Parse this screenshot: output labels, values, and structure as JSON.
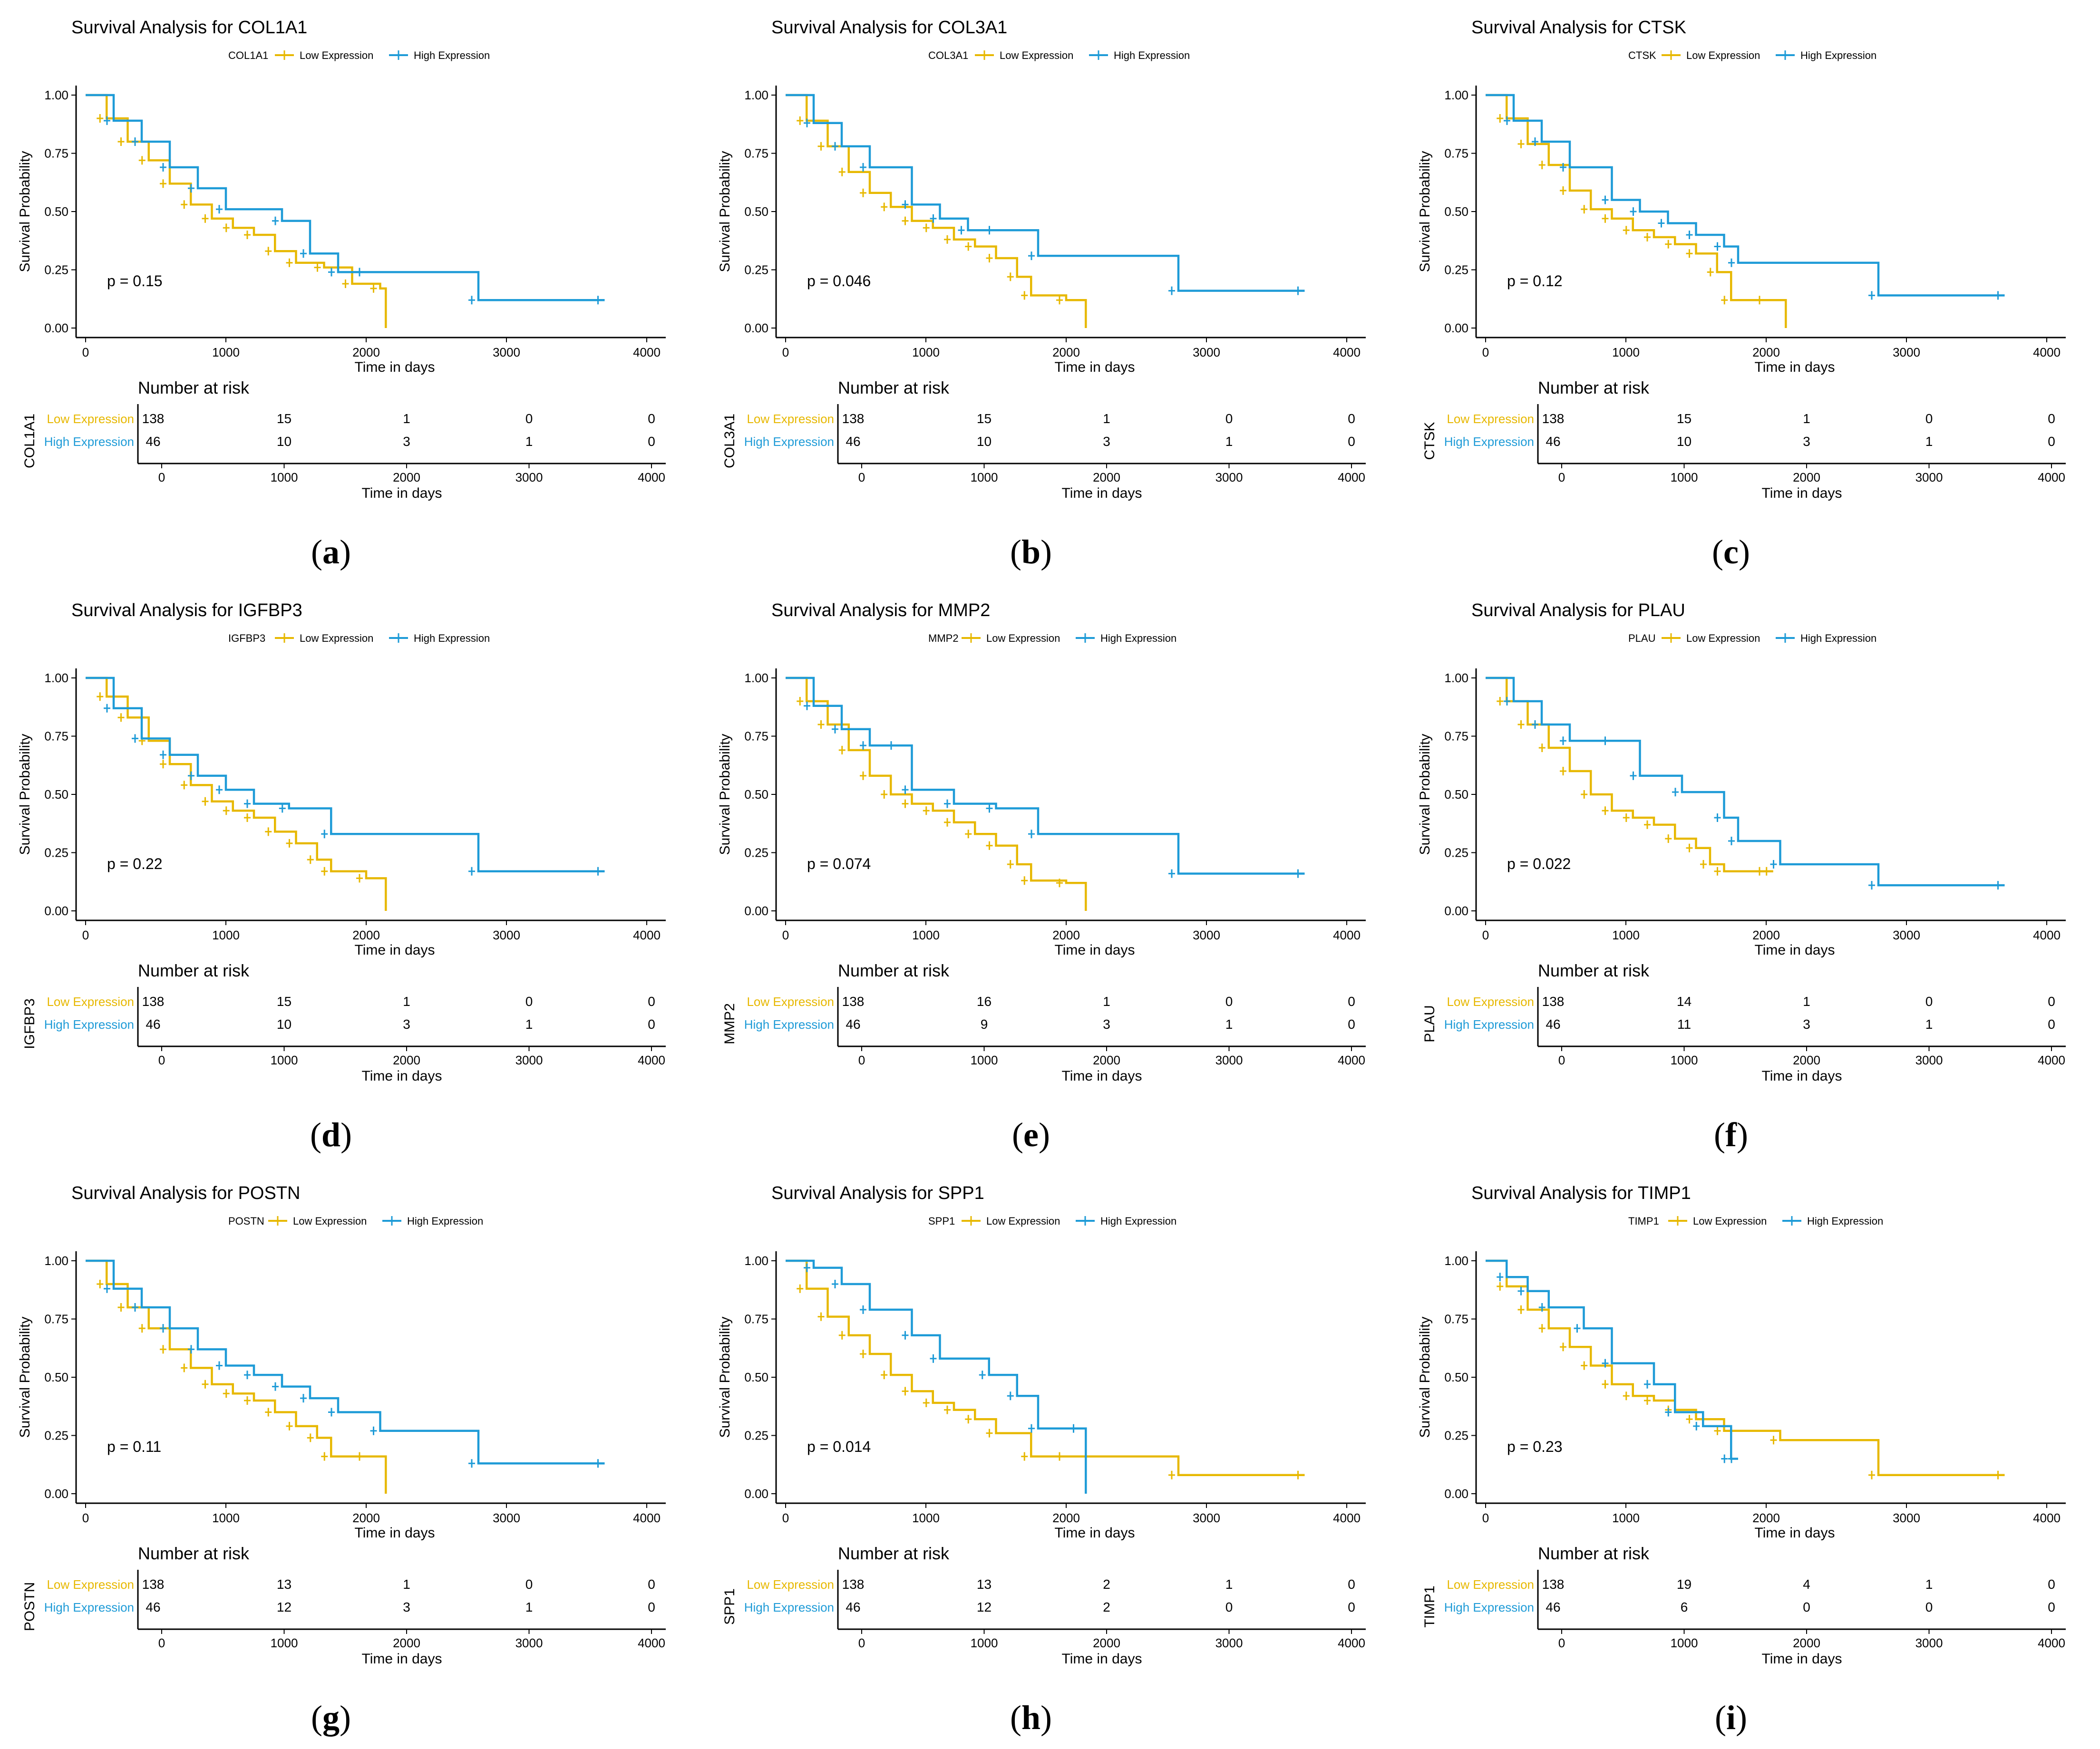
{
  "colors": {
    "low": "#E7B800",
    "high": "#1E9BD7",
    "axis": "#000000",
    "text": "#000000"
  },
  "common": {
    "legend_low": "Low Expression",
    "legend_high": "High Expression",
    "ylabel": "Survival Probability",
    "xlabel": "Time in days",
    "risk_title": "Number at risk",
    "risk_xlabel": "Time in days",
    "ytick_labels": [
      "0.00",
      "0.25",
      "0.50",
      "0.75",
      "1.00"
    ],
    "xtick_labels": [
      "0",
      "1000",
      "2000",
      "3000",
      "4000"
    ],
    "risk_row_low": "Low Expression",
    "risk_row_high": "High Expression"
  },
  "chart_data": [
    {
      "type": "line",
      "panel_label": "(a)",
      "gene": "COL1A1",
      "title": "Survival Analysis for COL1A1",
      "xlabel": "Time in days",
      "ylabel": "Survival Probability",
      "xlim": [
        0,
        4000
      ],
      "ylim": [
        0,
        1
      ],
      "p_value": "p = 0.15",
      "series": [
        {
          "name": "Low Expression",
          "x": [
            0,
            150,
            300,
            450,
            600,
            750,
            900,
            1050,
            1200,
            1350,
            1500,
            1700,
            1900,
            2100,
            2140
          ],
          "y": [
            1.0,
            0.9,
            0.8,
            0.72,
            0.62,
            0.53,
            0.47,
            0.43,
            0.4,
            0.33,
            0.28,
            0.26,
            0.19,
            0.17,
            0.0
          ]
        },
        {
          "name": "High Expression",
          "x": [
            0,
            200,
            400,
            600,
            800,
            1000,
            1400,
            1600,
            1800,
            2000,
            2800,
            3700
          ],
          "y": [
            1.0,
            0.89,
            0.8,
            0.69,
            0.6,
            0.51,
            0.46,
            0.32,
            0.24,
            0.24,
            0.12,
            0.12
          ]
        }
      ],
      "risk_table": {
        "times": [
          0,
          1000,
          2000,
          3000,
          4000
        ],
        "low": [
          "138",
          "15",
          "1",
          "0",
          "0"
        ],
        "high": [
          "46",
          "10",
          "3",
          "1",
          "0"
        ]
      }
    },
    {
      "type": "line",
      "panel_label": "(b)",
      "gene": "COL3A1",
      "title": "Survival Analysis for COL3A1",
      "xlabel": "Time in days",
      "ylabel": "Survival Probability",
      "xlim": [
        0,
        4000
      ],
      "ylim": [
        0,
        1
      ],
      "p_value": "p = 0.046",
      "series": [
        {
          "name": "Low Expression",
          "x": [
            0,
            150,
            300,
            450,
            600,
            750,
            900,
            1050,
            1200,
            1350,
            1500,
            1650,
            1750,
            2000,
            2140
          ],
          "y": [
            1.0,
            0.89,
            0.78,
            0.67,
            0.58,
            0.52,
            0.46,
            0.43,
            0.38,
            0.35,
            0.3,
            0.22,
            0.14,
            0.12,
            0.0
          ]
        },
        {
          "name": "High Expression",
          "x": [
            0,
            200,
            400,
            600,
            900,
            1100,
            1300,
            1500,
            1800,
            2800,
            3700
          ],
          "y": [
            1.0,
            0.88,
            0.78,
            0.69,
            0.53,
            0.47,
            0.42,
            0.42,
            0.31,
            0.16,
            0.16
          ]
        }
      ],
      "risk_table": {
        "times": [
          0,
          1000,
          2000,
          3000,
          4000
        ],
        "low": [
          "138",
          "15",
          "1",
          "0",
          "0"
        ],
        "high": [
          "46",
          "10",
          "3",
          "1",
          "0"
        ]
      }
    },
    {
      "type": "line",
      "panel_label": "(c)",
      "gene": "CTSK",
      "title": "Survival Analysis for CTSK",
      "xlabel": "Time in days",
      "ylabel": "Survival Probability",
      "xlim": [
        0,
        4000
      ],
      "ylim": [
        0,
        1
      ],
      "p_value": "p = 0.12",
      "series": [
        {
          "name": "Low Expression",
          "x": [
            0,
            150,
            300,
            450,
            600,
            750,
            900,
            1050,
            1200,
            1350,
            1500,
            1650,
            1750,
            2000,
            2140
          ],
          "y": [
            1.0,
            0.9,
            0.79,
            0.7,
            0.59,
            0.51,
            0.47,
            0.42,
            0.39,
            0.36,
            0.32,
            0.24,
            0.12,
            0.12,
            0.0
          ]
        },
        {
          "name": "High Expression",
          "x": [
            0,
            200,
            400,
            600,
            900,
            1100,
            1300,
            1500,
            1700,
            1800,
            2800,
            3700
          ],
          "y": [
            1.0,
            0.89,
            0.8,
            0.69,
            0.55,
            0.5,
            0.45,
            0.4,
            0.35,
            0.28,
            0.14,
            0.14
          ]
        }
      ],
      "risk_table": {
        "times": [
          0,
          1000,
          2000,
          3000,
          4000
        ],
        "low": [
          "138",
          "15",
          "1",
          "0",
          "0"
        ],
        "high": [
          "46",
          "10",
          "3",
          "1",
          "0"
        ]
      }
    },
    {
      "type": "line",
      "panel_label": "(d)",
      "gene": "IGFBP3",
      "title": "Survival Analysis for IGFBP3",
      "xlabel": "Time in days",
      "ylabel": "Survival Probability",
      "xlim": [
        0,
        4000
      ],
      "ylim": [
        0,
        1
      ],
      "p_value": "p = 0.22",
      "series": [
        {
          "name": "Low Expression",
          "x": [
            0,
            150,
            300,
            450,
            600,
            750,
            900,
            1050,
            1200,
            1350,
            1500,
            1650,
            1750,
            2000,
            2140
          ],
          "y": [
            1.0,
            0.92,
            0.83,
            0.73,
            0.63,
            0.54,
            0.47,
            0.43,
            0.4,
            0.34,
            0.29,
            0.22,
            0.17,
            0.14,
            0.0
          ]
        },
        {
          "name": "High Expression",
          "x": [
            0,
            200,
            400,
            600,
            800,
            1000,
            1200,
            1450,
            1750,
            2800,
            3700
          ],
          "y": [
            1.0,
            0.87,
            0.74,
            0.67,
            0.58,
            0.52,
            0.46,
            0.44,
            0.33,
            0.17,
            0.17
          ]
        }
      ],
      "risk_table": {
        "times": [
          0,
          1000,
          2000,
          3000,
          4000
        ],
        "low": [
          "138",
          "15",
          "1",
          "0",
          "0"
        ],
        "high": [
          "46",
          "10",
          "3",
          "1",
          "0"
        ]
      }
    },
    {
      "type": "line",
      "panel_label": "(e)",
      "gene": "MMP2",
      "title": "Survival Analysis for MMP2",
      "xlabel": "Time in days",
      "ylabel": "Survival Probability",
      "xlim": [
        0,
        4000
      ],
      "ylim": [
        0,
        1
      ],
      "p_value": "p = 0.074",
      "series": [
        {
          "name": "Low Expression",
          "x": [
            0,
            150,
            300,
            450,
            600,
            750,
            900,
            1050,
            1200,
            1350,
            1500,
            1650,
            1750,
            2000,
            2140
          ],
          "y": [
            1.0,
            0.9,
            0.8,
            0.69,
            0.58,
            0.5,
            0.46,
            0.43,
            0.38,
            0.33,
            0.28,
            0.2,
            0.13,
            0.12,
            0.0
          ]
        },
        {
          "name": "High Expression",
          "x": [
            0,
            200,
            400,
            600,
            800,
            900,
            1200,
            1500,
            1800,
            2800,
            3700
          ],
          "y": [
            1.0,
            0.88,
            0.78,
            0.71,
            0.71,
            0.52,
            0.46,
            0.44,
            0.33,
            0.16,
            0.16
          ]
        }
      ],
      "risk_table": {
        "times": [
          0,
          1000,
          2000,
          3000,
          4000
        ],
        "low": [
          "138",
          "16",
          "1",
          "0",
          "0"
        ],
        "high": [
          "46",
          "9",
          "3",
          "1",
          "0"
        ]
      }
    },
    {
      "type": "line",
      "panel_label": "(f)",
      "gene": "PLAU",
      "title": "Survival Analysis for PLAU",
      "xlabel": "Time in days",
      "ylabel": "Survival Probability",
      "xlim": [
        0,
        4000
      ],
      "ylim": [
        0,
        1
      ],
      "p_value": "p = 0.022",
      "series": [
        {
          "name": "Low Expression",
          "x": [
            0,
            150,
            300,
            450,
            600,
            750,
            900,
            1050,
            1200,
            1350,
            1500,
            1600,
            1700,
            2000,
            2050
          ],
          "y": [
            1.0,
            0.9,
            0.8,
            0.7,
            0.6,
            0.5,
            0.43,
            0.4,
            0.37,
            0.31,
            0.27,
            0.2,
            0.17,
            0.17,
            0.17
          ]
        },
        {
          "name": "High Expression",
          "x": [
            0,
            200,
            400,
            600,
            900,
            1100,
            1400,
            1700,
            1800,
            2100,
            2800,
            3700
          ],
          "y": [
            1.0,
            0.9,
            0.8,
            0.73,
            0.73,
            0.58,
            0.51,
            0.4,
            0.3,
            0.2,
            0.11,
            0.11
          ]
        }
      ],
      "risk_table": {
        "times": [
          0,
          1000,
          2000,
          3000,
          4000
        ],
        "low": [
          "138",
          "14",
          "1",
          "0",
          "0"
        ],
        "high": [
          "46",
          "11",
          "3",
          "1",
          "0"
        ]
      }
    },
    {
      "type": "line",
      "panel_label": "(g)",
      "gene": "POSTN",
      "title": "Survival Analysis for POSTN",
      "xlabel": "Time in days",
      "ylabel": "Survival Probability",
      "xlim": [
        0,
        4000
      ],
      "ylim": [
        0,
        1
      ],
      "p_value": "p = 0.11",
      "series": [
        {
          "name": "Low Expression",
          "x": [
            0,
            150,
            300,
            450,
            600,
            750,
            900,
            1050,
            1200,
            1350,
            1500,
            1650,
            1750,
            2000,
            2140
          ],
          "y": [
            1.0,
            0.9,
            0.8,
            0.71,
            0.62,
            0.54,
            0.47,
            0.43,
            0.4,
            0.35,
            0.29,
            0.24,
            0.16,
            0.16,
            0.0
          ]
        },
        {
          "name": "High Expression",
          "x": [
            0,
            200,
            400,
            600,
            800,
            1000,
            1200,
            1400,
            1600,
            1800,
            2100,
            2800,
            3700
          ],
          "y": [
            1.0,
            0.88,
            0.8,
            0.71,
            0.62,
            0.55,
            0.51,
            0.46,
            0.41,
            0.35,
            0.27,
            0.13,
            0.13
          ]
        }
      ],
      "risk_table": {
        "times": [
          0,
          1000,
          2000,
          3000,
          4000
        ],
        "low": [
          "138",
          "13",
          "1",
          "0",
          "0"
        ],
        "high": [
          "46",
          "12",
          "3",
          "1",
          "0"
        ]
      }
    },
    {
      "type": "line",
      "panel_label": "(h)",
      "gene": "SPP1",
      "title": "Survival Analysis for SPP1",
      "xlabel": "Time in days",
      "ylabel": "Survival Probability",
      "xlim": [
        0,
        4000
      ],
      "ylim": [
        0,
        1
      ],
      "p_value": "p = 0.014",
      "series": [
        {
          "name": "Low Expression",
          "x": [
            0,
            150,
            300,
            450,
            600,
            750,
            900,
            1050,
            1200,
            1350,
            1500,
            1750,
            2000,
            2800,
            3700
          ],
          "y": [
            1.0,
            0.88,
            0.76,
            0.68,
            0.6,
            0.51,
            0.44,
            0.39,
            0.36,
            0.32,
            0.26,
            0.16,
            0.16,
            0.08,
            0.08
          ]
        },
        {
          "name": "High Expression",
          "x": [
            0,
            200,
            400,
            600,
            900,
            1100,
            1450,
            1650,
            1800,
            2100,
            2140
          ],
          "y": [
            1.0,
            0.97,
            0.9,
            0.79,
            0.68,
            0.58,
            0.51,
            0.42,
            0.28,
            0.28,
            0.0
          ]
        }
      ],
      "risk_table": {
        "times": [
          0,
          1000,
          2000,
          3000,
          4000
        ],
        "low": [
          "138",
          "13",
          "2",
          "1",
          "0"
        ],
        "high": [
          "46",
          "12",
          "2",
          "0",
          "0"
        ]
      }
    },
    {
      "type": "line",
      "panel_label": "(i)",
      "gene": "TIMP1",
      "title": "Survival Analysis for TIMP1",
      "xlabel": "Time in days",
      "ylabel": "Survival Probability",
      "xlim": [
        0,
        4000
      ],
      "ylim": [
        0,
        1
      ],
      "p_value": "p = 0.23",
      "series": [
        {
          "name": "Low Expression",
          "x": [
            0,
            150,
            300,
            450,
            600,
            750,
            900,
            1050,
            1200,
            1350,
            1500,
            1700,
            2100,
            2800,
            3700
          ],
          "y": [
            1.0,
            0.89,
            0.79,
            0.71,
            0.63,
            0.55,
            0.47,
            0.42,
            0.4,
            0.36,
            0.32,
            0.27,
            0.23,
            0.08,
            0.08
          ]
        },
        {
          "name": "High Expression",
          "x": [
            0,
            150,
            300,
            450,
            700,
            900,
            1200,
            1350,
            1550,
            1750,
            1800
          ],
          "y": [
            1.0,
            0.93,
            0.87,
            0.8,
            0.71,
            0.56,
            0.47,
            0.35,
            0.29,
            0.15,
            0.15
          ]
        }
      ],
      "risk_table": {
        "times": [
          0,
          1000,
          2000,
          3000,
          4000
        ],
        "low": [
          "138",
          "19",
          "4",
          "1",
          "0"
        ],
        "high": [
          "46",
          "6",
          "0",
          "0",
          "0"
        ]
      }
    }
  ]
}
